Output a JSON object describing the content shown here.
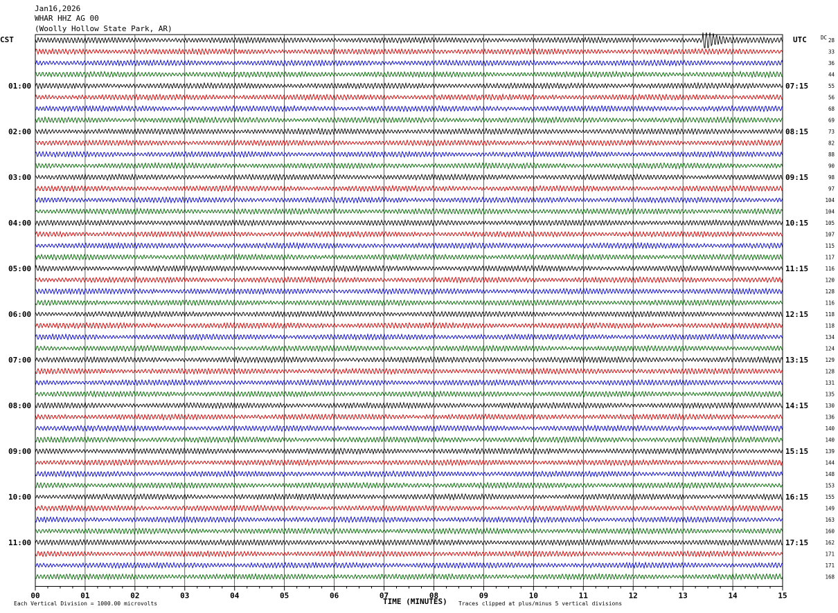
{
  "header": {
    "date": "Jan16,2026",
    "station": "WHAR HHZ AG 00",
    "location": "(Woolly Hollow State Park, AR)"
  },
  "left_timezone": "CST",
  "right_timezone": "UTC",
  "dc_label": "DC",
  "footer": {
    "scale_note": "Each Vertical Division = 1000.00 microvolts",
    "clip_note": "Traces clipped at plus/minus 5 vertical divisions"
  },
  "colors": {
    "trace_cycle": [
      "#000000",
      "#cc0000",
      "#0000cc",
      "#006600"
    ],
    "grid": "#000000"
  },
  "chart_data": {
    "type": "line",
    "title": "WHAR HHZ AG 00",
    "xlabel": "TIME (MINUTES)",
    "ylabel": "",
    "x_ticks": [
      "00",
      "01",
      "02",
      "03",
      "04",
      "05",
      "06",
      "07",
      "08",
      "09",
      "10",
      "11",
      "12",
      "13",
      "14",
      "15"
    ],
    "xlim": [
      0,
      15
    ],
    "lines_per_hour": 4,
    "num_lines": 48,
    "left_hour_labels": [
      "01:00",
      "02:00",
      "03:00",
      "04:00",
      "05:00",
      "06:00",
      "07:00",
      "08:00",
      "09:00",
      "10:00",
      "11:00"
    ],
    "right_hour_labels": [
      "07:15",
      "08:15",
      "09:15",
      "10:15",
      "11:15",
      "12:15",
      "13:15",
      "14:15",
      "15:15",
      "16:15",
      "17:15"
    ],
    "dc_offsets": [
      28,
      33,
      36,
      44,
      55,
      56,
      68,
      69,
      73,
      82,
      88,
      90,
      98,
      97,
      104,
      104,
      105,
      107,
      115,
      117,
      116,
      120,
      128,
      116,
      118,
      118,
      134,
      124,
      129,
      128,
      131,
      135,
      130,
      136,
      140,
      140,
      139,
      144,
      148,
      153,
      155,
      149,
      163,
      160,
      162,
      171,
      171,
      168
    ],
    "event": {
      "line": 0,
      "minute_start": 13.4,
      "minute_end": 14.1
    }
  }
}
